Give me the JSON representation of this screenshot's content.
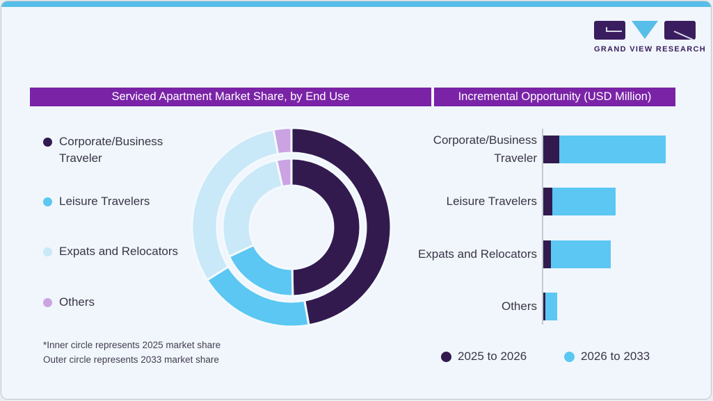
{
  "brand": {
    "name": "GRAND VIEW RESEARCH",
    "logo_colors": {
      "purple": "#3A1D5E",
      "blue": "#56BEE8"
    }
  },
  "colors": {
    "background": "#F0F6FB",
    "top_strip": "#56BEE8",
    "title_bar": "#7A23A7",
    "dark_purple": "#321A4E",
    "blue": "#5BC7F2",
    "light_blue": "#C9E8F8",
    "lavender": "#CBA3E2",
    "axis": "#C6CAD0"
  },
  "left_panel": {
    "title": "Serviced Apartment Market Share, by End Use",
    "legend": [
      {
        "label": "Corporate/Business Traveler",
        "color": "#321A4E"
      },
      {
        "label": "Leisure Travelers",
        "color": "#5BC7F2"
      },
      {
        "label": "Expats and Relocators",
        "color": "#C9E8F8"
      },
      {
        "label": "Others",
        "color": "#CBA3E2"
      }
    ],
    "footnote_line1": "*Inner circle represents 2025 market share",
    "footnote_line2": "Outer circle represents 2033 market share"
  },
  "right_panel": {
    "title": "Incremental Opportunity (USD Million)",
    "legend": [
      {
        "label": "2025 to 2026",
        "color": "#321A4E"
      },
      {
        "label": "2026 to 2033",
        "color": "#5BC7F2"
      }
    ]
  },
  "chart_data": [
    {
      "type": "pie",
      "subtype": "double_donut",
      "title": "Serviced Apartment Market Share, by End Use",
      "categories": [
        "Corporate/Business Traveler",
        "Leisure Travelers",
        "Expats and Relocators",
        "Others"
      ],
      "colors": [
        "#321A4E",
        "#5BC7F2",
        "#C9E8F8",
        "#CBA3E2"
      ],
      "series": [
        {
          "name": "2025 market share (inner circle)",
          "ring": "inner",
          "values": [
            49.7,
            18.3,
            28.5,
            3.5
          ]
        },
        {
          "name": "2033 market share (outer circle)",
          "ring": "outer",
          "values": [
            47.2,
            18.9,
            31.0,
            2.9
          ]
        }
      ],
      "unit": "percent of market share",
      "start_angle": "12 o'clock, clockwise",
      "legend_position": "left"
    },
    {
      "type": "bar",
      "orientation": "horizontal",
      "title": "Incremental Opportunity (USD Million)",
      "categories": [
        "Corporate/Business Traveler",
        "Leisure Travelers",
        "Expats and Relocators",
        "Others"
      ],
      "series": [
        {
          "name": "2025 to 2026",
          "color": "#321A4E",
          "values": [
            23,
            13,
            11,
            3
          ]
        },
        {
          "name": "2026 to 2033",
          "color": "#5BC7F2",
          "values": [
            153,
            91,
            86,
            17
          ]
        }
      ],
      "stacked": true,
      "value_axis": "not labeled (relative units read from bar lengths)",
      "legend_position": "bottom"
    }
  ]
}
